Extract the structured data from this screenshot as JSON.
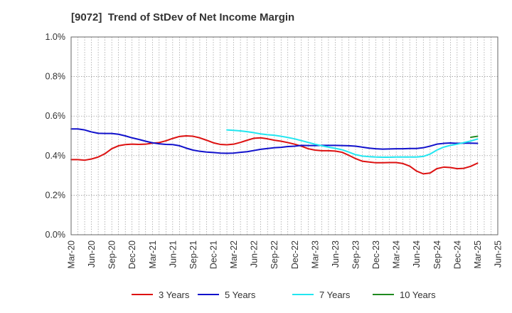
{
  "title": "[9072]  Trend of StDev of Net Income Margin",
  "colors": {
    "series_3y": "#dd1111",
    "series_5y": "#1111cc",
    "series_7y": "#22e6f0",
    "series_10y": "#1f8a1f",
    "grid": "#888888",
    "axis": "#666666"
  },
  "chart_data": {
    "type": "line",
    "title": "[9072]  Trend of StDev of Net Income Margin",
    "xlabel": "",
    "ylabel": "",
    "ylim": [
      0,
      1.0
    ],
    "yticks": [
      "0.0%",
      "0.2%",
      "0.4%",
      "0.6%",
      "0.8%",
      "1.0%"
    ],
    "x_tick_labels": [
      "Mar-20",
      "Jun-20",
      "Sep-20",
      "Dec-20",
      "Mar-21",
      "Jun-21",
      "Sep-21",
      "Dec-21",
      "Mar-22",
      "Jun-22",
      "Sep-22",
      "Dec-22",
      "Mar-23",
      "Jun-23",
      "Sep-23",
      "Dec-23",
      "Mar-24",
      "Jun-24",
      "Sep-24",
      "Dec-24",
      "Mar-25",
      "Jun-25"
    ],
    "x_start": "2020-03",
    "x_end": "2025-06",
    "grid": true,
    "legend_position": "bottom",
    "series": [
      {
        "name": "3 Years",
        "color": "#dd1111",
        "points": [
          [
            "2020-03",
            0.38
          ],
          [
            "2020-04",
            0.38
          ],
          [
            "2020-05",
            0.377
          ],
          [
            "2020-06",
            0.383
          ],
          [
            "2020-07",
            0.393
          ],
          [
            "2020-08",
            0.41
          ],
          [
            "2020-09",
            0.435
          ],
          [
            "2020-10",
            0.45
          ],
          [
            "2020-11",
            0.456
          ],
          [
            "2020-12",
            0.458
          ],
          [
            "2021-01",
            0.457
          ],
          [
            "2021-02",
            0.458
          ],
          [
            "2021-03",
            0.463
          ],
          [
            "2021-04",
            0.466
          ],
          [
            "2021-05",
            0.475
          ],
          [
            "2021-06",
            0.487
          ],
          [
            "2021-07",
            0.497
          ],
          [
            "2021-08",
            0.5
          ],
          [
            "2021-09",
            0.498
          ],
          [
            "2021-10",
            0.49
          ],
          [
            "2021-11",
            0.478
          ],
          [
            "2021-12",
            0.465
          ],
          [
            "2022-01",
            0.457
          ],
          [
            "2022-02",
            0.455
          ],
          [
            "2022-03",
            0.458
          ],
          [
            "2022-04",
            0.467
          ],
          [
            "2022-05",
            0.478
          ],
          [
            "2022-06",
            0.488
          ],
          [
            "2022-07",
            0.49
          ],
          [
            "2022-08",
            0.485
          ],
          [
            "2022-09",
            0.478
          ],
          [
            "2022-10",
            0.473
          ],
          [
            "2022-11",
            0.466
          ],
          [
            "2022-12",
            0.458
          ],
          [
            "2023-01",
            0.448
          ],
          [
            "2023-02",
            0.435
          ],
          [
            "2023-03",
            0.428
          ],
          [
            "2023-04",
            0.425
          ],
          [
            "2023-05",
            0.425
          ],
          [
            "2023-06",
            0.423
          ],
          [
            "2023-07",
            0.417
          ],
          [
            "2023-08",
            0.402
          ],
          [
            "2023-09",
            0.385
          ],
          [
            "2023-10",
            0.372
          ],
          [
            "2023-11",
            0.368
          ],
          [
            "2023-12",
            0.364
          ],
          [
            "2024-01",
            0.364
          ],
          [
            "2024-02",
            0.365
          ],
          [
            "2024-03",
            0.365
          ],
          [
            "2024-04",
            0.36
          ],
          [
            "2024-05",
            0.347
          ],
          [
            "2024-06",
            0.322
          ],
          [
            "2024-07",
            0.308
          ],
          [
            "2024-08",
            0.312
          ],
          [
            "2024-09",
            0.334
          ],
          [
            "2024-10",
            0.342
          ],
          [
            "2024-11",
            0.34
          ],
          [
            "2024-12",
            0.334
          ],
          [
            "2025-01",
            0.336
          ],
          [
            "2025-02",
            0.346
          ],
          [
            "2025-03",
            0.362
          ]
        ]
      },
      {
        "name": "5 Years",
        "color": "#1111cc",
        "points": [
          [
            "2020-03",
            0.535
          ],
          [
            "2020-04",
            0.535
          ],
          [
            "2020-05",
            0.53
          ],
          [
            "2020-06",
            0.52
          ],
          [
            "2020-07",
            0.513
          ],
          [
            "2020-08",
            0.512
          ],
          [
            "2020-09",
            0.512
          ],
          [
            "2020-10",
            0.508
          ],
          [
            "2020-11",
            0.5
          ],
          [
            "2020-12",
            0.49
          ],
          [
            "2021-01",
            0.482
          ],
          [
            "2021-02",
            0.473
          ],
          [
            "2021-03",
            0.465
          ],
          [
            "2021-04",
            0.46
          ],
          [
            "2021-05",
            0.457
          ],
          [
            "2021-06",
            0.456
          ],
          [
            "2021-07",
            0.45
          ],
          [
            "2021-08",
            0.438
          ],
          [
            "2021-09",
            0.428
          ],
          [
            "2021-10",
            0.422
          ],
          [
            "2021-11",
            0.418
          ],
          [
            "2021-12",
            0.416
          ],
          [
            "2022-01",
            0.413
          ],
          [
            "2022-02",
            0.412
          ],
          [
            "2022-03",
            0.413
          ],
          [
            "2022-04",
            0.417
          ],
          [
            "2022-05",
            0.42
          ],
          [
            "2022-06",
            0.426
          ],
          [
            "2022-07",
            0.432
          ],
          [
            "2022-08",
            0.436
          ],
          [
            "2022-09",
            0.44
          ],
          [
            "2022-10",
            0.442
          ],
          [
            "2022-11",
            0.446
          ],
          [
            "2022-12",
            0.448
          ],
          [
            "2023-01",
            0.452
          ],
          [
            "2023-02",
            0.451
          ],
          [
            "2023-03",
            0.451
          ],
          [
            "2023-04",
            0.452
          ],
          [
            "2023-05",
            0.452
          ],
          [
            "2023-06",
            0.452
          ],
          [
            "2023-07",
            0.451
          ],
          [
            "2023-08",
            0.45
          ],
          [
            "2023-09",
            0.448
          ],
          [
            "2023-10",
            0.443
          ],
          [
            "2023-11",
            0.438
          ],
          [
            "2023-12",
            0.435
          ],
          [
            "2024-01",
            0.433
          ],
          [
            "2024-02",
            0.434
          ],
          [
            "2024-03",
            0.435
          ],
          [
            "2024-04",
            0.435
          ],
          [
            "2024-05",
            0.436
          ],
          [
            "2024-06",
            0.436
          ],
          [
            "2024-07",
            0.44
          ],
          [
            "2024-08",
            0.448
          ],
          [
            "2024-09",
            0.458
          ],
          [
            "2024-10",
            0.462
          ],
          [
            "2024-11",
            0.464
          ],
          [
            "2024-12",
            0.462
          ],
          [
            "2025-01",
            0.463
          ],
          [
            "2025-02",
            0.463
          ],
          [
            "2025-03",
            0.462
          ]
        ]
      },
      {
        "name": "7 Years",
        "color": "#22e6f0",
        "points": [
          [
            "2022-02",
            0.53
          ],
          [
            "2022-03",
            0.528
          ],
          [
            "2022-04",
            0.525
          ],
          [
            "2022-05",
            0.521
          ],
          [
            "2022-06",
            0.516
          ],
          [
            "2022-07",
            0.51
          ],
          [
            "2022-08",
            0.506
          ],
          [
            "2022-09",
            0.503
          ],
          [
            "2022-10",
            0.498
          ],
          [
            "2022-11",
            0.492
          ],
          [
            "2022-12",
            0.485
          ],
          [
            "2023-01",
            0.476
          ],
          [
            "2023-02",
            0.467
          ],
          [
            "2023-03",
            0.458
          ],
          [
            "2023-04",
            0.45
          ],
          [
            "2023-05",
            0.443
          ],
          [
            "2023-06",
            0.437
          ],
          [
            "2023-07",
            0.43
          ],
          [
            "2023-08",
            0.418
          ],
          [
            "2023-09",
            0.405
          ],
          [
            "2023-10",
            0.398
          ],
          [
            "2023-11",
            0.395
          ],
          [
            "2023-12",
            0.393
          ],
          [
            "2024-01",
            0.392
          ],
          [
            "2024-02",
            0.392
          ],
          [
            "2024-03",
            0.393
          ],
          [
            "2024-04",
            0.393
          ],
          [
            "2024-05",
            0.393
          ],
          [
            "2024-06",
            0.393
          ],
          [
            "2024-07",
            0.396
          ],
          [
            "2024-08",
            0.408
          ],
          [
            "2024-09",
            0.428
          ],
          [
            "2024-10",
            0.443
          ],
          [
            "2024-11",
            0.452
          ],
          [
            "2024-12",
            0.458
          ],
          [
            "2025-01",
            0.466
          ],
          [
            "2025-02",
            0.474
          ],
          [
            "2025-03",
            0.484
          ]
        ]
      },
      {
        "name": "10 Years",
        "color": "#1f8a1f",
        "points": [
          [
            "2025-02",
            0.493
          ],
          [
            "2025-03",
            0.498
          ]
        ]
      }
    ]
  }
}
